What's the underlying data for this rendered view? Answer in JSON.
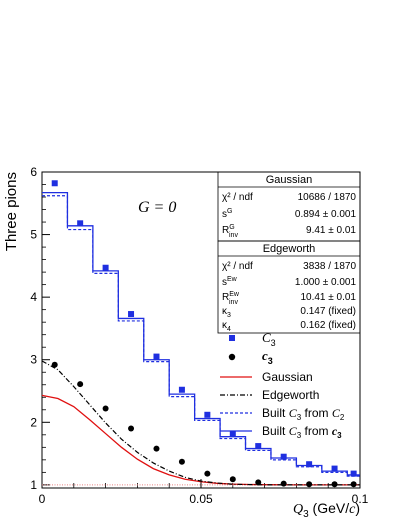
{
  "chart_data": {
    "type": "line",
    "ylabel": "Three pions",
    "xlabel_main": "Q",
    "xlabel_sub": "3",
    "xlabel_unit_open": " (GeV/",
    "xlabel_unit_c": "c",
    "xlabel_unit_close": ")",
    "xlim": [
      0,
      0.1
    ],
    "ylim": [
      0.95,
      6
    ],
    "x_ticks": [
      0,
      0.05,
      0.1
    ],
    "x_tick_labels": [
      "0",
      "0.05",
      "0.1"
    ],
    "y_ticks": [
      1,
      2,
      3,
      4,
      5,
      6
    ],
    "y_tick_labels": [
      "1",
      "2",
      "3",
      "4",
      "5",
      "6"
    ],
    "annotation": "G = 0",
    "legend": {
      "c3_points": "C",
      "c3_points_sub": "3",
      "c3_bold": "c",
      "c3_bold_sub": "3",
      "gaussian": "Gaussian",
      "edgeworth": "Edgeworth",
      "built_from_c2_prefix": "Built ",
      "built_from_c2_C": "C",
      "built_from_c2_Csub": "3",
      "built_from_c2_mid": " from ",
      "built_from_c2_end": "C",
      "built_from_c2_endsub": "2",
      "built_from_c3_prefix": "Built ",
      "built_from_c3_C": "C",
      "built_from_c3_Csub": "3",
      "built_from_c3_mid": " from ",
      "built_from_c3_end": "c",
      "built_from_c3_endsub": "3"
    },
    "fit_gaussian": {
      "header": "Gaussian",
      "rows": [
        {
          "label": "χ² / ndf",
          "value": "10686 / 1870"
        },
        {
          "label": "s",
          "sup": "G",
          "value": "0.894 ± 0.001"
        },
        {
          "label": "R",
          "sup": "G",
          "sub": "inv",
          "value": "9.41 ± 0.01"
        }
      ]
    },
    "fit_edgeworth": {
      "header": "Edgeworth",
      "rows": [
        {
          "label": "χ² / ndf",
          "value": "3838 / 1870"
        },
        {
          "label": "s",
          "sup": "Ew",
          "value": "1.000 ± 0.001"
        },
        {
          "label": "R",
          "sup": "Ew",
          "sub": "inv",
          "value": "10.41 ± 0.01"
        },
        {
          "label": "κ",
          "sub": "3",
          "value": "0.147 (fixed)"
        },
        {
          "label": "κ",
          "sub": "4",
          "value": "0.162 (fixed)"
        }
      ]
    },
    "bin_edges": [
      0,
      0.008,
      0.016,
      0.024,
      0.032,
      0.04,
      0.048,
      0.056,
      0.064,
      0.072,
      0.08,
      0.088,
      0.096,
      0.1
    ],
    "series": [
      {
        "name": "C3",
        "style": "blue-square",
        "x": [
          0.004,
          0.012,
          0.02,
          0.028,
          0.036,
          0.044,
          0.052,
          0.06,
          0.068,
          0.076,
          0.084,
          0.092,
          0.098
        ],
        "y": [
          5.82,
          5.18,
          4.47,
          3.73,
          3.05,
          2.52,
          2.12,
          1.82,
          1.62,
          1.45,
          1.33,
          1.26,
          1.18
        ]
      },
      {
        "name": "c3",
        "style": "black-circle",
        "x": [
          0.004,
          0.012,
          0.02,
          0.028,
          0.036,
          0.044,
          0.052,
          0.06,
          0.068,
          0.076,
          0.084,
          0.092,
          0.098
        ],
        "y": [
          2.92,
          2.61,
          2.22,
          1.9,
          1.58,
          1.37,
          1.18,
          1.09,
          1.04,
          1.02,
          1.01,
          1.01,
          1.01
        ]
      },
      {
        "name": "Gaussian",
        "style": "red-line",
        "x": [
          0,
          0.005,
          0.01,
          0.015,
          0.02,
          0.025,
          0.03,
          0.035,
          0.04,
          0.045,
          0.05,
          0.055,
          0.06,
          0.065,
          0.07,
          0.075,
          0.08,
          0.085,
          0.09,
          0.095,
          0.1
        ],
        "y": [
          2.43,
          2.38,
          2.25,
          2.04,
          1.82,
          1.6,
          1.41,
          1.26,
          1.16,
          1.09,
          1.05,
          1.025,
          1.012,
          1.006,
          1.003,
          1.001,
          1.0,
          1.0,
          1.0,
          1.0,
          1.0
        ]
      },
      {
        "name": "Edgeworth",
        "style": "black-dashdot",
        "x": [
          0,
          0.005,
          0.01,
          0.015,
          0.02,
          0.025,
          0.03,
          0.035,
          0.04,
          0.045,
          0.05,
          0.055,
          0.06,
          0.065,
          0.07,
          0.075,
          0.08,
          0.085,
          0.09,
          0.095,
          0.1
        ],
        "y": [
          2.98,
          2.84,
          2.57,
          2.28,
          1.99,
          1.73,
          1.52,
          1.35,
          1.22,
          1.12,
          1.06,
          1.03,
          1.01,
          1.005,
          1.0,
          1.0,
          1.0,
          1.0,
          1.0,
          1.0,
          1.0
        ]
      },
      {
        "name": "Built C3 from C2",
        "style": "blue-dashed-step",
        "values": [
          5.62,
          5.08,
          4.38,
          3.62,
          2.97,
          2.41,
          2.03,
          1.74,
          1.55,
          1.4,
          1.29,
          1.2,
          1.14
        ]
      },
      {
        "name": "Built C3 from c3",
        "style": "blue-solid-step",
        "values": [
          5.67,
          5.14,
          4.42,
          3.66,
          3.0,
          2.45,
          2.06,
          1.77,
          1.58,
          1.43,
          1.31,
          1.22,
          1.16
        ]
      }
    ],
    "reference_line_y": 1,
    "colors": {
      "blue": "#1f2fe0",
      "black": "#000000",
      "red": "#e01010",
      "reference": "#e88080"
    }
  }
}
